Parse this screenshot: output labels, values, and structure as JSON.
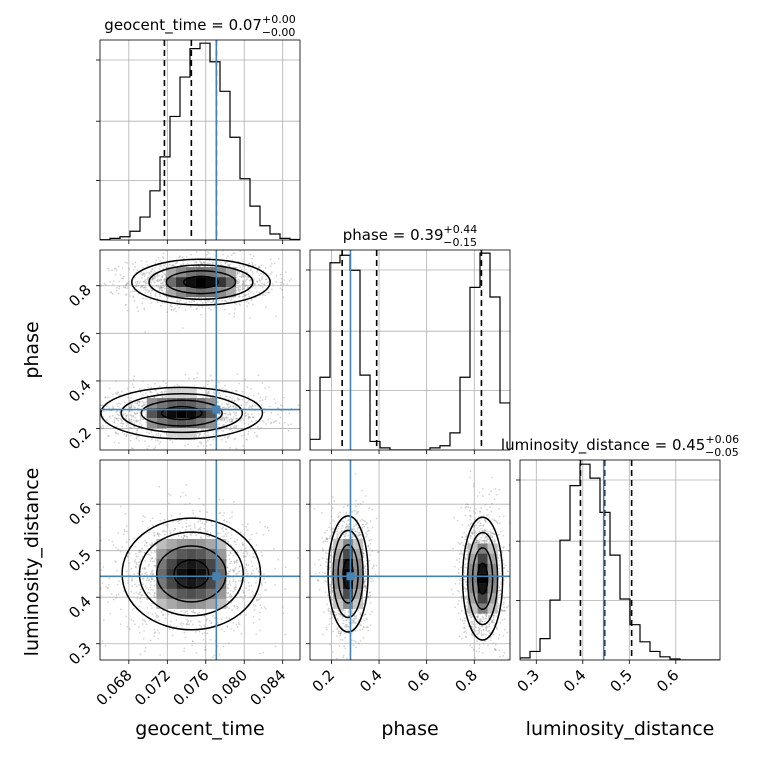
{
  "chart_data": {
    "type": "corner",
    "parameters": [
      {
        "name": "geocent_time",
        "range": [
          0.065,
          0.0858
        ],
        "ticks": [
          "0.068",
          "0.072",
          "0.076",
          "0.080",
          "0.084"
        ],
        "tick_values": [
          0.068,
          0.072,
          0.076,
          0.08,
          0.084
        ],
        "title_value": "0.07",
        "title_plus": "+0.00",
        "title_minus": "−0.00",
        "quantiles": [
          0.0717,
          0.0745,
          0.0771
        ],
        "truth": 0.0771
      },
      {
        "name": "phase",
        "range": [
          0.11,
          0.95
        ],
        "ticks": [
          "0.2",
          "0.4",
          "0.6",
          "0.8"
        ],
        "tick_values": [
          0.2,
          0.4,
          0.6,
          0.8
        ],
        "title_value": "0.39",
        "title_plus": "+0.44",
        "title_minus": "−0.15",
        "quantiles": [
          0.245,
          0.39,
          0.83
        ],
        "truth": 0.28
      },
      {
        "name": "luminosity_distance",
        "range": [
          0.265,
          0.695
        ],
        "ticks": [
          "0.3",
          "0.4",
          "0.5",
          "0.6"
        ],
        "tick_values": [
          0.3,
          0.4,
          0.5,
          0.6
        ],
        "title_value": "0.45",
        "title_plus": "+0.06",
        "title_minus": "−0.05",
        "quantiles": [
          0.395,
          0.447,
          0.505
        ],
        "truth": 0.445
      }
    ],
    "title_prefix": {
      "0": "geocent_time = ",
      "1": "phase = ",
      "2": "luminosity_distance = "
    },
    "axis_labels": {
      "x0": "geocent_time",
      "x1": "phase",
      "x2": "luminosity_distance",
      "y1": "phase",
      "y2": "luminosity_distance"
    },
    "histograms": [
      {
        "param": "geocent_time",
        "bin_start": 0.065,
        "bin_width": 0.00104,
        "counts": [
          0.3,
          1.5,
          3.0,
          8.0,
          21.0,
          45.0,
          76.0,
          113.0,
          149.0,
          175.0,
          180.0,
          163.0,
          136.0,
          94.0,
          56.0,
          31.0,
          13.0,
          5.5,
          1.5,
          0.5
        ],
        "ymax": 182
      },
      {
        "param": "phase",
        "bin_start": 0.11,
        "bin_width": 0.042,
        "counts": [
          10.0,
          68.0,
          175.0,
          182.0,
          168.0,
          70.0,
          8.0,
          2.0,
          0.0,
          0.0,
          0.0,
          0.0,
          2.0,
          4.0,
          16.0,
          68.0,
          152.0,
          184.0,
          143.0,
          44.0
        ],
        "ymax": 186
      },
      {
        "param": "luminosity_distance",
        "bin_start": 0.265,
        "bin_width": 0.0215,
        "counts": [
          2.0,
          8.0,
          20.0,
          56.0,
          112.0,
          163.0,
          183.0,
          170.0,
          138.0,
          98.0,
          57.0,
          33.0,
          17.0,
          8.0,
          3.0,
          1.0,
          0.0,
          0.0,
          0.0,
          0.0
        ],
        "ymax": 186
      }
    ],
    "pairs": [
      {
        "x": "geocent_time",
        "y": "phase",
        "modes": [
          {
            "cx": 0.0755,
            "cy": 0.815,
            "sx": 0.003,
            "sy": 0.04
          },
          {
            "cx": 0.0735,
            "cy": 0.265,
            "sx": 0.0035,
            "sy": 0.045
          }
        ]
      },
      {
        "x": "geocent_time",
        "y": "luminosity_distance",
        "modes": [
          {
            "cx": 0.0745,
            "cy": 0.45,
            "sx": 0.003,
            "sy": 0.05
          }
        ]
      },
      {
        "x": "phase",
        "y": "luminosity_distance",
        "modes": [
          {
            "cx": 0.27,
            "cy": 0.45,
            "sx": 0.035,
            "sy": 0.052
          },
          {
            "cx": 0.835,
            "cy": 0.44,
            "sx": 0.035,
            "sy": 0.055
          }
        ]
      }
    ],
    "truth_color": "#4682b4",
    "grid": true
  }
}
